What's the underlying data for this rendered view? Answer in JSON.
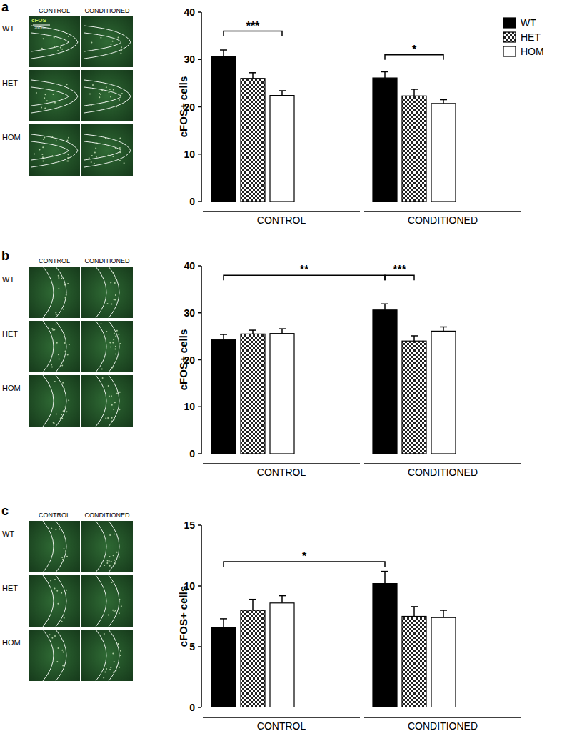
{
  "chart_data": [
    {
      "type": "bar",
      "panel": "a",
      "images": {
        "columns": [
          "CONTROL",
          "CONDITIONED"
        ],
        "rows": [
          "WT",
          "HET",
          "HOM"
        ],
        "stain": "cFOS",
        "scale_bar": "200 um"
      },
      "y_label": "cFOS+ cells",
      "categories": [
        "CONTROL",
        "CONDITIONED"
      ],
      "series": [
        {
          "name": "WT",
          "color": "#000000",
          "values": [
            30.7,
            26.1
          ],
          "errors": [
            1.3,
            1.3
          ]
        },
        {
          "name": "HET",
          "color": "#808080",
          "values": [
            26.0,
            22.3
          ],
          "errors": [
            1.2,
            1.4
          ]
        },
        {
          "name": "HOM",
          "color": "#ffffff",
          "values": [
            22.4,
            20.7
          ],
          "errors": [
            1.0,
            0.8
          ]
        }
      ],
      "annotations": [
        {
          "text": "***",
          "from": [
            0,
            0
          ],
          "to": [
            0,
            2
          ],
          "y": 36
        },
        {
          "text": "*",
          "from": [
            1,
            0
          ],
          "to": [
            1,
            2
          ],
          "y": 31
        }
      ],
      "ylim": [
        0,
        40
      ],
      "yticks": [
        0,
        10,
        20,
        30,
        40
      ],
      "grid": false,
      "legend": "top-right"
    },
    {
      "type": "bar",
      "panel": "b",
      "images": {
        "columns": [
          "CONTROL",
          "CONDITIONED"
        ],
        "rows": [
          "WT",
          "HET",
          "HOM"
        ]
      },
      "y_label": "cFOS+ cells",
      "categories": [
        "CONTROL",
        "CONDITIONED"
      ],
      "series": [
        {
          "name": "WT",
          "color": "#000000",
          "values": [
            24.3,
            30.6
          ],
          "errors": [
            1.1,
            1.3
          ]
        },
        {
          "name": "HET",
          "color": "#808080",
          "values": [
            25.5,
            24.0
          ],
          "errors": [
            0.8,
            1.1
          ]
        },
        {
          "name": "HOM",
          "color": "#ffffff",
          "values": [
            25.6,
            26.1
          ],
          "errors": [
            1.0,
            0.9
          ]
        }
      ],
      "annotations": [
        {
          "text": "**",
          "from": [
            0,
            0
          ],
          "to": [
            1,
            0
          ],
          "y": 38
        },
        {
          "text": "***",
          "from": [
            1,
            0
          ],
          "to": [
            1,
            1
          ],
          "y": 38
        }
      ],
      "ylim": [
        0,
        40
      ],
      "yticks": [
        0,
        10,
        20,
        30,
        40
      ],
      "grid": false
    },
    {
      "type": "bar",
      "panel": "c",
      "images": {
        "columns": [
          "CONTROL",
          "CONDITIONED"
        ],
        "rows": [
          "WT",
          "HET",
          "HOM"
        ]
      },
      "y_label": "cFOS+ cells",
      "categories": [
        "CONTROL",
        "CONDITIONED"
      ],
      "series": [
        {
          "name": "WT",
          "color": "#000000",
          "values": [
            6.6,
            10.2
          ],
          "errors": [
            0.7,
            1.0
          ]
        },
        {
          "name": "HET",
          "color": "#808080",
          "values": [
            8.0,
            7.5
          ],
          "errors": [
            0.9,
            0.8
          ]
        },
        {
          "name": "HOM",
          "color": "#ffffff",
          "values": [
            8.6,
            7.4
          ],
          "errors": [
            0.6,
            0.6
          ]
        }
      ],
      "annotations": [
        {
          "text": "*",
          "from": [
            0,
            0
          ],
          "to": [
            1,
            0
          ],
          "y": 12
        }
      ],
      "ylim": [
        0,
        15
      ],
      "yticks": [
        0,
        5,
        10,
        15
      ],
      "grid": false
    }
  ]
}
